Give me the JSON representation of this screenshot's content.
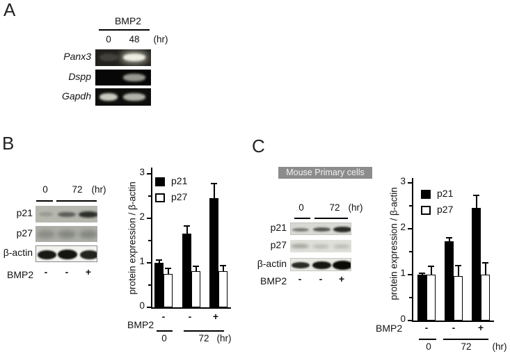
{
  "colors": {
    "background": "#ffffff",
    "text": "#111111",
    "banner_bg": "#8c8c8c",
    "banner_text": "#f2f2f2",
    "bar_p21": "#000000",
    "bar_p27": "#ffffff"
  },
  "panel_a": {
    "label": "A",
    "treatment_label": "BMP2",
    "timepoints": [
      "0",
      "48"
    ],
    "time_unit": "(hr)",
    "gel_rows": [
      {
        "gene": "Panx3",
        "band_intensities": [
          0.15,
          0.95
        ]
      },
      {
        "gene": "Dspp",
        "band_intensities": [
          0.02,
          0.6
        ]
      },
      {
        "gene": "Gapdh",
        "band_intensities": [
          0.8,
          0.7
        ]
      }
    ]
  },
  "panel_b": {
    "label": "B",
    "blot": {
      "timepoints": [
        "0",
        "72"
      ],
      "time_unit": "(hr)",
      "rows": [
        {
          "protein": "p21",
          "band_intensities": [
            0.2,
            0.6,
            0.9
          ]
        },
        {
          "protein": "p27",
          "band_intensities": [
            0.3,
            0.35,
            0.35
          ]
        },
        {
          "protein": "β-actin",
          "band_intensities": [
            0.95,
            0.97,
            0.9
          ]
        }
      ],
      "treatment_label": "BMP2",
      "treatment_signs": [
        "-",
        "-",
        "+"
      ]
    }
  },
  "panel_c": {
    "label": "C",
    "banner": "Mouse Primary cells",
    "blot": {
      "timepoints": [
        "0",
        "72"
      ],
      "time_unit": "(hr)",
      "rows": [
        {
          "protein": "p21",
          "band_intensities": [
            0.5,
            0.7,
            0.95
          ]
        },
        {
          "protein": "p27",
          "band_intensities": [
            0.45,
            0.3,
            0.3
          ]
        },
        {
          "protein": "β-actin",
          "band_intensities": [
            0.85,
            0.95,
            1.0
          ]
        }
      ],
      "treatment_label": "BMP2",
      "treatment_signs": [
        "-",
        "-",
        "+"
      ]
    }
  },
  "chart_data": [
    {
      "type": "bar",
      "panel": "B",
      "title": "",
      "ylabel": "protein expression / β-actin",
      "ylim": [
        0,
        3
      ],
      "yticks": [
        0,
        1,
        2,
        3
      ],
      "minor_tick_step": 0.5,
      "legend_position": "top-left",
      "categories": [
        "BMP2 - / 0 hr",
        "BMP2 - / 72 hr",
        "BMP2 + / 72 hr"
      ],
      "series": [
        {
          "name": "p21",
          "fill": "#000000",
          "values": [
            1.0,
            1.65,
            2.45
          ],
          "errors": [
            0.08,
            0.2,
            0.35
          ]
        },
        {
          "name": "p27",
          "fill": "#ffffff",
          "values": [
            0.75,
            0.82,
            0.82
          ],
          "errors": [
            0.14,
            0.12,
            0.13
          ]
        }
      ],
      "x_axis": {
        "treatment_label": "BMP2",
        "treatment_signs": [
          "-",
          "-",
          "+"
        ],
        "time_groups": [
          {
            "label": "0",
            "groups": [
              0
            ]
          },
          {
            "label": "72",
            "groups": [
              1,
              2
            ]
          }
        ],
        "time_unit": "(hr)"
      }
    },
    {
      "type": "bar",
      "panel": "C",
      "title": "",
      "ylabel": "protein expression / β-actin",
      "ylim": [
        0,
        3
      ],
      "yticks": [
        0,
        1,
        2,
        3
      ],
      "minor_tick_step": 0.5,
      "legend_position": "top-left",
      "categories": [
        "BMP2 - / 0 hr",
        "BMP2 - / 72 hr",
        "BMP2 + / 72 hr"
      ],
      "series": [
        {
          "name": "p21",
          "fill": "#000000",
          "values": [
            1.0,
            1.72,
            2.45
          ],
          "errors": [
            0.05,
            0.1,
            0.3
          ]
        },
        {
          "name": "p27",
          "fill": "#ffffff",
          "values": [
            1.0,
            0.97,
            1.0
          ],
          "errors": [
            0.2,
            0.24,
            0.27
          ]
        }
      ],
      "x_axis": {
        "treatment_label": "BMP2",
        "treatment_signs": [
          "-",
          "-",
          "+"
        ],
        "time_groups": [
          {
            "label": "0",
            "groups": [
              0
            ]
          },
          {
            "label": "72",
            "groups": [
              1,
              2
            ]
          }
        ],
        "time_unit": "(hr)"
      }
    }
  ]
}
